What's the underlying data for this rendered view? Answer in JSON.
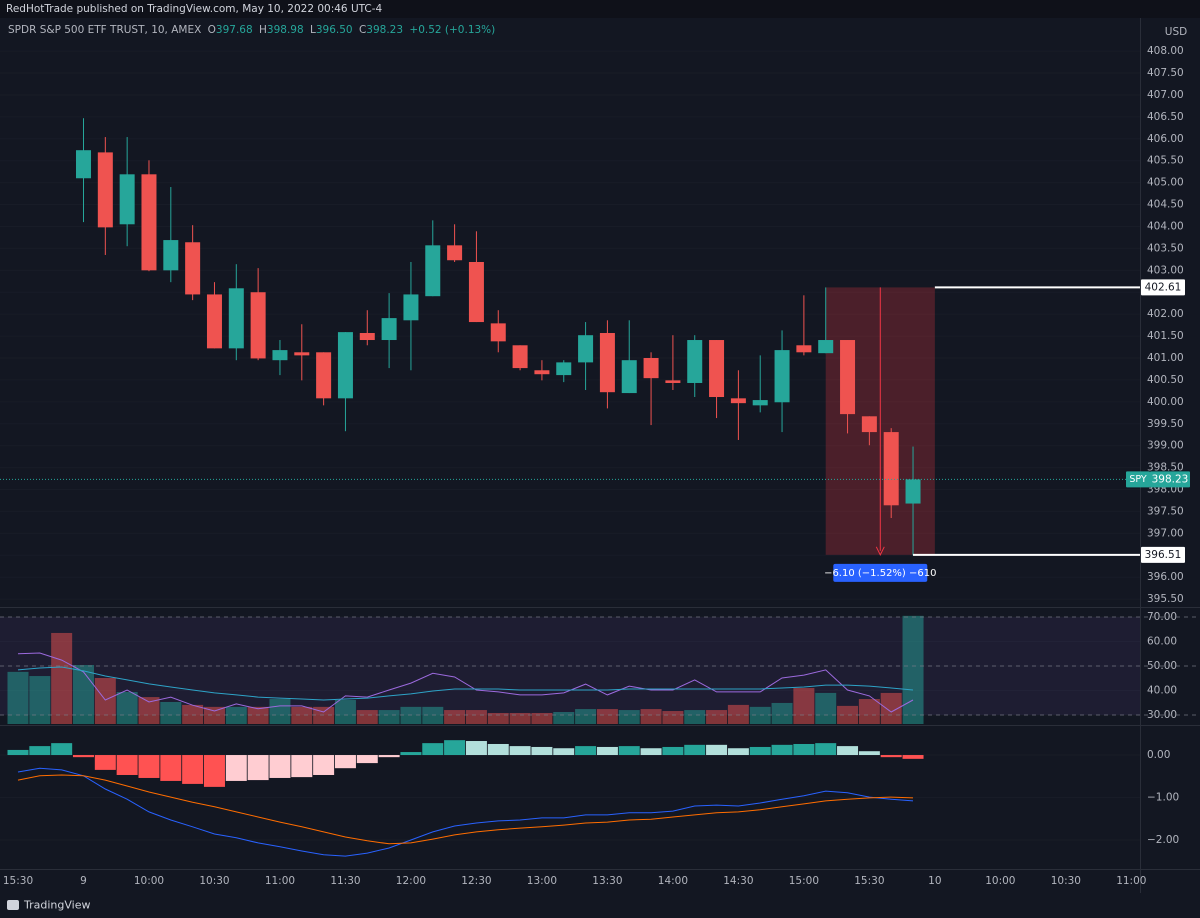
{
  "header": "RedHotTrade published on TradingView.com, May 10, 2022 00:46 UTC-4",
  "footer": "TradingView",
  "chart_data": [
    {
      "type": "candlestick",
      "legend": {
        "name": "SPDR S&P 500 ETF TRUST, 10, AMEX",
        "fields": [
          {
            "key": "O",
            "value": "397.68"
          },
          {
            "key": "H",
            "value": "398.98"
          },
          {
            "key": "L",
            "value": "396.50"
          },
          {
            "key": "C",
            "value": "398.23"
          }
        ],
        "change": "+0.52 (+0.13%)"
      },
      "currency": "USD",
      "symbol": "SPY",
      "up_color": "#26a69a",
      "down_color": "#ef5350",
      "categories": [
        "15:30",
        null,
        null,
        "9",
        null,
        null,
        "10:00",
        null,
        null,
        "10:30",
        null,
        null,
        "11:00",
        null,
        null,
        "11:30",
        null,
        null,
        "12:00",
        null,
        null,
        "12:30",
        null,
        null,
        "13:00",
        null,
        null,
        "13:30",
        null,
        null,
        "14:00",
        null,
        null,
        "14:30",
        null,
        null,
        "15:00",
        null,
        null,
        "15:30",
        null,
        null,
        "10",
        null,
        null,
        "10:00",
        null,
        null,
        "10:30",
        null,
        null,
        "11:00"
      ],
      "open": [
        null,
        null,
        null,
        405.1,
        405.69,
        404.05,
        405.19,
        403.0,
        403.64,
        402.45,
        401.22,
        402.5,
        400.95,
        401.13,
        401.13,
        400.08,
        401.57,
        401.41,
        401.86,
        402.41,
        403.57,
        403.19,
        401.79,
        401.29,
        400.72,
        400.61,
        400.9,
        401.57,
        400.2,
        401.0,
        400.49,
        400.43,
        401.41,
        400.08,
        399.92,
        399.99,
        401.29,
        401.11,
        401.41,
        399.67,
        399.31,
        397.68,
        null,
        null,
        null,
        null,
        null,
        null,
        null,
        null,
        null,
        null
      ],
      "high": [
        null,
        null,
        null,
        406.47,
        406.04,
        406.04,
        405.51,
        404.9,
        404.03,
        402.73,
        403.14,
        403.05,
        401.41,
        401.77,
        401.13,
        401.59,
        402.09,
        402.48,
        403.19,
        404.14,
        404.05,
        403.89,
        402.09,
        401.29,
        400.95,
        400.95,
        401.82,
        401.86,
        401.86,
        401.13,
        401.52,
        401.52,
        401.41,
        400.72,
        401.06,
        401.63,
        402.43,
        402.61,
        401.41,
        399.67,
        399.4,
        398.98,
        null,
        null,
        null,
        null,
        null,
        null,
        null,
        null,
        null,
        null
      ],
      "low": [
        null,
        null,
        null,
        404.1,
        403.35,
        403.55,
        402.98,
        402.73,
        402.32,
        401.22,
        400.95,
        400.95,
        400.61,
        400.49,
        399.92,
        399.33,
        401.29,
        400.77,
        400.72,
        402.41,
        403.19,
        401.82,
        401.13,
        400.72,
        400.49,
        400.45,
        400.27,
        399.85,
        400.2,
        399.47,
        400.27,
        400.11,
        399.63,
        399.13,
        399.76,
        399.31,
        401.06,
        401.11,
        399.28,
        399.01,
        397.35,
        396.5,
        null,
        null,
        null,
        null,
        null,
        null,
        null,
        null,
        null,
        null
      ],
      "close": [
        null,
        null,
        null,
        405.74,
        403.98,
        405.19,
        403.0,
        403.69,
        402.45,
        401.22,
        402.59,
        400.99,
        401.18,
        401.06,
        400.08,
        401.59,
        401.41,
        401.91,
        402.45,
        403.57,
        403.23,
        401.82,
        401.38,
        400.77,
        400.63,
        400.9,
        401.52,
        400.22,
        400.95,
        400.54,
        400.43,
        401.41,
        400.11,
        399.97,
        400.04,
        401.18,
        401.13,
        401.41,
        399.72,
        399.31,
        397.64,
        398.23,
        null,
        null,
        null,
        null,
        null,
        null,
        null,
        null,
        null,
        null
      ],
      "ylim": [
        395.32,
        408.71
      ],
      "yticks": [
        {
          "value": 395.5,
          "label": "395.50"
        },
        {
          "value": 396,
          "label": "396.00"
        },
        {
          "value": 396.5,
          "label": "396.50"
        },
        {
          "value": 397,
          "label": "397.00"
        },
        {
          "value": 397.5,
          "label": "397.50"
        },
        {
          "value": 398,
          "label": "398.00"
        },
        {
          "value": 398.5,
          "label": "398.50"
        },
        {
          "value": 399,
          "label": "399.00"
        },
        {
          "value": 399.5,
          "label": "399.50"
        },
        {
          "value": 400,
          "label": "400.00"
        },
        {
          "value": 400.5,
          "label": "400.50"
        },
        {
          "value": 401,
          "label": "401.00"
        },
        {
          "value": 401.5,
          "label": "401.50"
        },
        {
          "value": 402,
          "label": "402.00"
        },
        {
          "value": 402.5,
          "label": "402.50"
        },
        {
          "value": 403,
          "label": "403.00"
        },
        {
          "value": 403.5,
          "label": "403.50"
        },
        {
          "value": 404,
          "label": "404.00"
        },
        {
          "value": 404.5,
          "label": "404.50"
        },
        {
          "value": 405,
          "label": "405.00"
        },
        {
          "value": 405.5,
          "label": "405.50"
        },
        {
          "value": 406,
          "label": "406.00"
        },
        {
          "value": 406.5,
          "label": "406.50"
        },
        {
          "value": 407,
          "label": "407.00"
        },
        {
          "value": 407.5,
          "label": "407.50"
        },
        {
          "value": 408,
          "label": "408.00"
        }
      ],
      "measure": {
        "high": 402.61,
        "low": 396.51,
        "label": "−6.10 (−1.52%) −610",
        "color": "#f23645"
      }
    },
    {
      "type": "line",
      "ylim": [
        26.3,
        73.7
      ],
      "yticks": [
        {
          "value": 30,
          "label": "30.00"
        },
        {
          "value": 40,
          "label": "40.00"
        },
        {
          "value": 50,
          "label": "50.00"
        },
        {
          "value": 60,
          "label": "60.00"
        },
        {
          "value": 70,
          "label": "70.00"
        }
      ],
      "levels": [
        70,
        50,
        30
      ],
      "series": [
        {
          "color": "#9c6ade",
          "values": [
            55.0,
            55.3,
            52.4,
            47.6,
            36.1,
            40.2,
            35.3,
            37.3,
            34.0,
            31.6,
            34.5,
            32.5,
            33.7,
            33.7,
            31.2,
            37.8,
            37.3,
            40.2,
            43.0,
            47.0,
            45.5,
            40.2,
            39.4,
            38.2,
            38.2,
            39.0,
            42.6,
            38.2,
            41.8,
            40.2,
            40.2,
            44.3,
            39.4,
            39.4,
            39.4,
            45.1,
            46.3,
            48.4,
            40.2,
            37.8,
            31.2,
            36.1,
            null,
            null,
            null,
            null,
            null,
            null,
            null,
            null,
            null,
            null
          ]
        },
        {
          "color": "#2ea3c7",
          "values": [
            48.4,
            49.2,
            49.6,
            48.0,
            45.9,
            44.3,
            42.7,
            41.4,
            40.2,
            39.0,
            38.2,
            37.3,
            36.9,
            36.5,
            36.1,
            36.5,
            36.9,
            37.8,
            38.6,
            39.8,
            40.6,
            40.6,
            40.6,
            40.2,
            40.2,
            40.2,
            40.2,
            40.2,
            40.6,
            40.6,
            40.6,
            40.6,
            40.6,
            40.6,
            40.6,
            41.0,
            41.4,
            42.2,
            42.2,
            41.8,
            41.0,
            40.2,
            null,
            null,
            null,
            null,
            null,
            null,
            null,
            null,
            null,
            null
          ]
        }
      ],
      "volume": {
        "values": [
          47.6,
          45.9,
          63.5,
          50.4,
          45.1,
          39.4,
          37.3,
          35.3,
          34.1,
          33.3,
          33.3,
          33.3,
          36.5,
          33.3,
          33.3,
          36.1,
          32.0,
          32.0,
          33.3,
          33.3,
          32.0,
          32.0,
          30.8,
          30.8,
          30.8,
          31.2,
          32.4,
          32.4,
          32.0,
          32.4,
          31.6,
          32.0,
          32.0,
          34.1,
          33.3,
          34.9,
          41.0,
          39.0,
          33.7,
          36.5,
          39.0,
          70.5,
          null,
          null,
          null,
          null,
          null,
          null,
          null,
          null,
          null,
          null
        ],
        "colors": [
          "#26a69a",
          "#26a69a",
          "#ef5350",
          "#26a69a",
          "#ef5350",
          "#26a69a",
          "#ef5350",
          "#26a69a",
          "#ef5350",
          "#ef5350",
          "#26a69a",
          "#ef5350",
          "#26a69a",
          "#ef5350",
          "#ef5350",
          "#26a69a",
          "#ef5350",
          "#26a69a",
          "#26a69a",
          "#26a69a",
          "#ef5350",
          "#ef5350",
          "#ef5350",
          "#ef5350",
          "#ef5350",
          "#26a69a",
          "#26a69a",
          "#ef5350",
          "#26a69a",
          "#ef5350",
          "#ef5350",
          "#26a69a",
          "#ef5350",
          "#ef5350",
          "#26a69a",
          "#26a69a",
          "#ef5350",
          "#26a69a",
          "#ef5350",
          "#ef5350",
          "#ef5350",
          "#26a69a",
          null,
          null,
          null,
          null,
          null,
          null,
          null,
          null,
          null,
          null
        ]
      }
    },
    {
      "type": "macd",
      "ylim": [
        -2.66,
        0.66
      ],
      "yticks": [
        {
          "value": -2,
          "label": "−2.00"
        },
        {
          "value": -1,
          "label": "−1.00"
        },
        {
          "value": 0,
          "label": "0.00"
        }
      ],
      "histogram": {
        "values": [
          0.12,
          0.21,
          0.28,
          -0.05,
          -0.35,
          -0.47,
          -0.54,
          -0.61,
          -0.68,
          -0.75,
          -0.61,
          -0.59,
          -0.54,
          -0.52,
          -0.47,
          -0.31,
          -0.19,
          -0.05,
          0.07,
          0.28,
          0.35,
          0.33,
          0.26,
          0.21,
          0.19,
          0.16,
          0.21,
          0.19,
          0.21,
          0.16,
          0.19,
          0.24,
          0.24,
          0.16,
          0.19,
          0.24,
          0.26,
          0.28,
          0.21,
          0.09,
          -0.05,
          -0.09,
          null,
          null,
          null,
          null,
          null,
          null,
          null,
          null,
          null,
          null
        ],
        "colors": [
          "#26a69a",
          "#26a69a",
          "#26a69a",
          "#ff5252",
          "#ff5252",
          "#ff5252",
          "#ff5252",
          "#ff5252",
          "#ff5252",
          "#ff5252",
          "#ffcdd2",
          "#ffcdd2",
          "#ffcdd2",
          "#ffcdd2",
          "#ffcdd2",
          "#ffcdd2",
          "#ffcdd2",
          "#ffcdd2",
          "#26a69a",
          "#26a69a",
          "#26a69a",
          "#b2dfdb",
          "#b2dfdb",
          "#b2dfdb",
          "#b2dfdb",
          "#b2dfdb",
          "#26a69a",
          "#b2dfdb",
          "#26a69a",
          "#b2dfdb",
          "#26a69a",
          "#26a69a",
          "#b2dfdb",
          "#b2dfdb",
          "#26a69a",
          "#26a69a",
          "#26a69a",
          "#26a69a",
          "#b2dfdb",
          "#b2dfdb",
          "#ff5252",
          "#ff5252",
          null,
          null,
          null,
          null,
          null,
          null,
          null,
          null,
          null,
          null
        ]
      },
      "series": [
        {
          "color": "#2962ff",
          "values": [
            -0.4,
            -0.31,
            -0.35,
            -0.49,
            -0.8,
            -1.04,
            -1.34,
            -1.53,
            -1.69,
            -1.86,
            -1.95,
            -2.07,
            -2.16,
            -2.26,
            -2.35,
            -2.38,
            -2.31,
            -2.19,
            -2.0,
            -1.81,
            -1.67,
            -1.6,
            -1.55,
            -1.53,
            -1.48,
            -1.48,
            -1.41,
            -1.41,
            -1.36,
            -1.36,
            -1.32,
            -1.2,
            -1.18,
            -1.2,
            -1.13,
            -1.04,
            -0.96,
            -0.85,
            -0.89,
            -0.99,
            -1.04,
            -1.08,
            null,
            null,
            null,
            null,
            null,
            null,
            null,
            null,
            null,
            null
          ]
        },
        {
          "color": "#ff6d00",
          "values": [
            -0.59,
            -0.49,
            -0.47,
            -0.49,
            -0.59,
            -0.73,
            -0.87,
            -0.99,
            -1.11,
            -1.22,
            -1.34,
            -1.46,
            -1.58,
            -1.69,
            -1.81,
            -1.93,
            -2.02,
            -2.09,
            -2.07,
            -1.98,
            -1.88,
            -1.81,
            -1.76,
            -1.72,
            -1.69,
            -1.65,
            -1.6,
            -1.58,
            -1.53,
            -1.51,
            -1.46,
            -1.41,
            -1.36,
            -1.34,
            -1.29,
            -1.22,
            -1.15,
            -1.08,
            -1.04,
            -1.01,
            -0.99,
            -1.01,
            null,
            null,
            null,
            null,
            null,
            null,
            null,
            null,
            null,
            null
          ]
        }
      ]
    }
  ]
}
